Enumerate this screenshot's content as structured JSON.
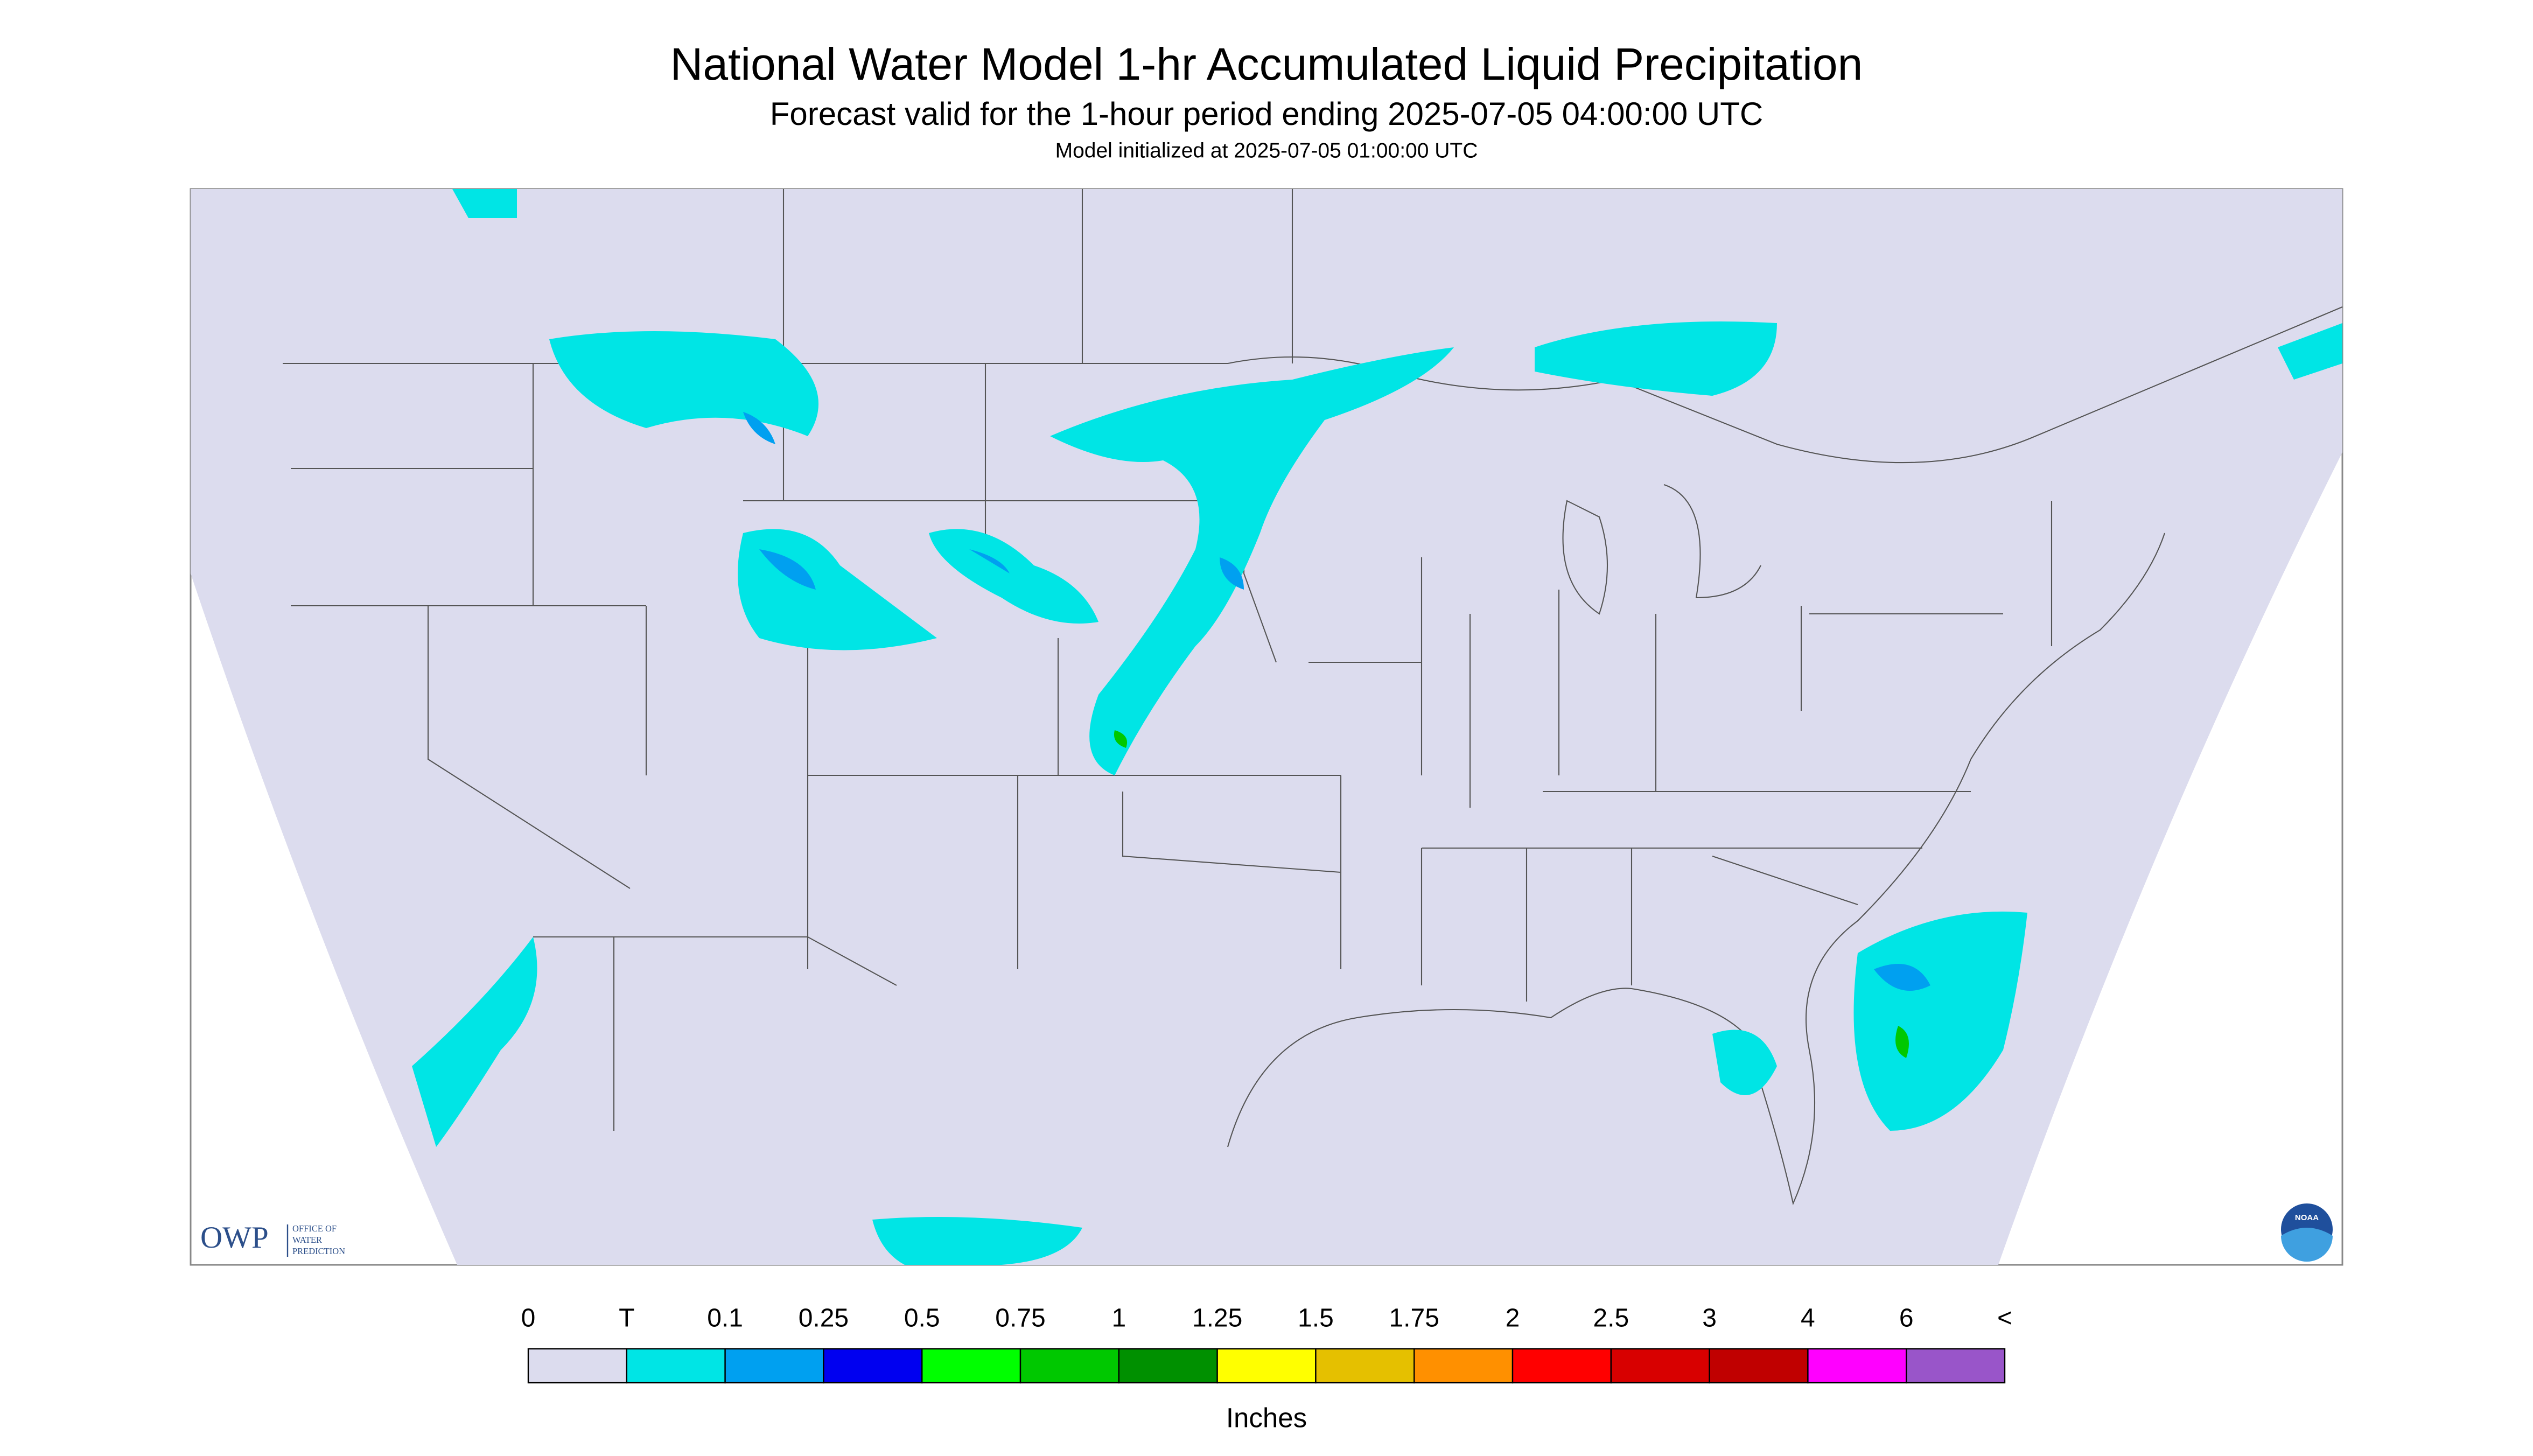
{
  "header": {
    "title": "National Water Model 1-hr Accumulated Liquid Precipitation",
    "subtitle": "Forecast valid for the 1-hour period ending 2025-07-05 04:00:00 UTC",
    "note": "Model initialized at 2025-07-05 01:00:00 UTC"
  },
  "legend": {
    "labels": [
      "0",
      "T",
      "0.1",
      "0.25",
      "0.5",
      "0.75",
      "1",
      "1.25",
      "1.5",
      "1.75",
      "2",
      "2.5",
      "3",
      "4",
      "6",
      "<"
    ],
    "colors": [
      "#dcdcee",
      "#00e5e5",
      "#00a0f0",
      "#0000f0",
      "#00ff00",
      "#00c800",
      "#009000",
      "#ffff00",
      "#e5c000",
      "#ff9000",
      "#ff0000",
      "#d80000",
      "#c00000",
      "#ff00ff",
      "#9955c9"
    ],
    "unit": "Inches"
  },
  "logo": {
    "abbr": "OWP",
    "lines": [
      "OFFICE OF",
      "WATER",
      "PREDICTION"
    ]
  },
  "badge": "NOAA"
}
